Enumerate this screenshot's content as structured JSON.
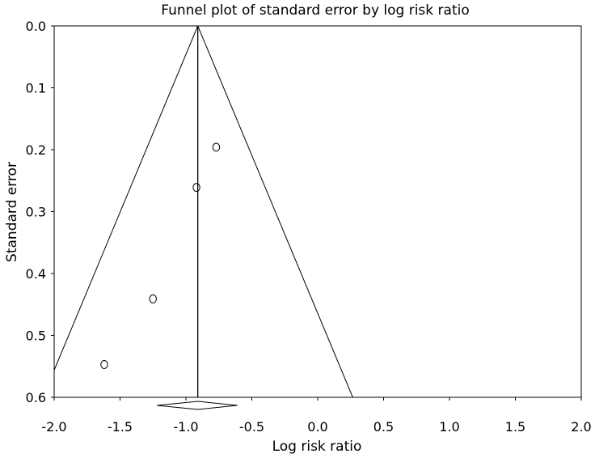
{
  "chart_data": {
    "type": "scatter",
    "title": "Funnel plot of standard error by log risk ratio",
    "xlabel": "Log risk ratio",
    "ylabel": "Standard error",
    "xlim": [
      -2.0,
      2.0
    ],
    "ylim": [
      0.0,
      0.6
    ],
    "y_inverted": true,
    "xticks": [
      "-2.0",
      "-1.5",
      "-1.0",
      "-0.5",
      "0.0",
      "0.5",
      "1.0",
      "1.5",
      "2.0"
    ],
    "yticks": [
      "0.0",
      "0.1",
      "0.2",
      "0.3",
      "0.4",
      "0.5",
      "0.6"
    ],
    "grid": false,
    "legend": "none",
    "points": [
      {
        "x": -0.77,
        "y": 0.196
      },
      {
        "x": -0.92,
        "y": 0.261
      },
      {
        "x": -1.25,
        "y": 0.441
      },
      {
        "x": -1.62,
        "y": 0.547
      }
    ],
    "pooled_estimate": -0.91,
    "funnel_z": 1.96,
    "summary_diamond": {
      "center": -0.91,
      "lower": -1.22,
      "upper": -0.61
    }
  }
}
